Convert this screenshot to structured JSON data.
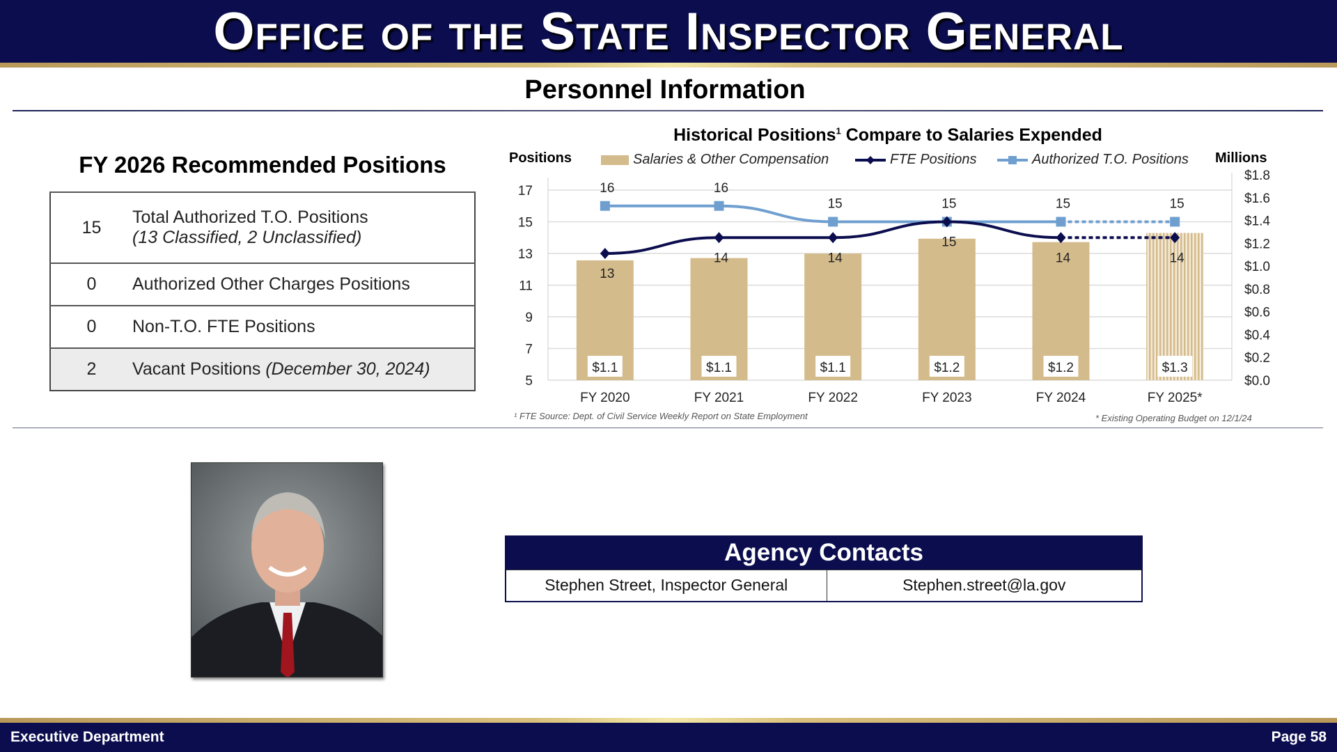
{
  "header": {
    "title": "Office of the State Inspector General"
  },
  "page_title": "Personnel Information",
  "positions": {
    "heading": "FY 2026 Recommended Positions",
    "rows": [
      {
        "count": "15",
        "label": "Total Authorized T.O. Positions",
        "note": "(13 Classified, 2 Unclassified)"
      },
      {
        "count": "0",
        "label": "Authorized Other Charges Positions",
        "note": ""
      },
      {
        "count": "0",
        "label": "Non-T.O. FTE Positions",
        "note": ""
      },
      {
        "count": "2",
        "label": "Vacant Positions ",
        "note": "(December 30, 2024)"
      }
    ]
  },
  "chart_data": {
    "type": "bar",
    "title": "Historical Positions",
    "title_sup": "1",
    "title_rest": " Compare to Salaries Expended",
    "ylabel_left": "Positions",
    "ylabel_right": "Millions",
    "categories": [
      "FY 2020",
      "FY 2021",
      "FY 2022",
      "FY 2023",
      "FY 2024",
      "FY 2025*"
    ],
    "ylim_left": [
      5,
      17
    ],
    "yticks_left": [
      "5",
      "7",
      "9",
      "11",
      "13",
      "15",
      "17"
    ],
    "ylim_right": [
      0,
      1.8
    ],
    "yticks_right": [
      "$0.0",
      "$0.2",
      "$0.4",
      "$0.6",
      "$0.8",
      "$1.0",
      "$1.2",
      "$1.4",
      "$1.6",
      "$1.8"
    ],
    "grid": true,
    "legend_placement": "top",
    "series": [
      {
        "name": "Salaries & Other Compensation",
        "type": "bar",
        "axis": "right",
        "values": [
          1.05,
          1.07,
          1.11,
          1.24,
          1.21,
          1.29
        ],
        "labels": [
          "$1.1",
          "$1.1",
          "$1.1",
          "$1.2",
          "$1.2",
          "$1.3"
        ],
        "color": "#d4bb8b",
        "last_hatched": true
      },
      {
        "name": "FTE Positions",
        "type": "line",
        "axis": "left",
        "values": [
          13,
          14,
          14,
          15,
          14,
          14
        ],
        "color": "#0b0d4e",
        "marker": "diamond",
        "last_segment_dashed": true
      },
      {
        "name": "Authorized T.O. Positions",
        "type": "line",
        "axis": "left",
        "values": [
          16,
          16,
          15,
          15,
          15,
          15
        ],
        "color": "#6f9fcf",
        "marker": "square",
        "last_segment_dashed": true
      }
    ],
    "footnote_left": "¹ FTE Source:  Dept. of Civil Service Weekly Report on State Employment",
    "footnote_right": "* Existing Operating Budget on 12/1/24"
  },
  "contacts": {
    "heading": "Agency Contacts",
    "name": "Stephen Street, Inspector General",
    "email": "Stephen.street@la.gov"
  },
  "footer": {
    "left": "Executive Department",
    "right": "Page 58"
  }
}
